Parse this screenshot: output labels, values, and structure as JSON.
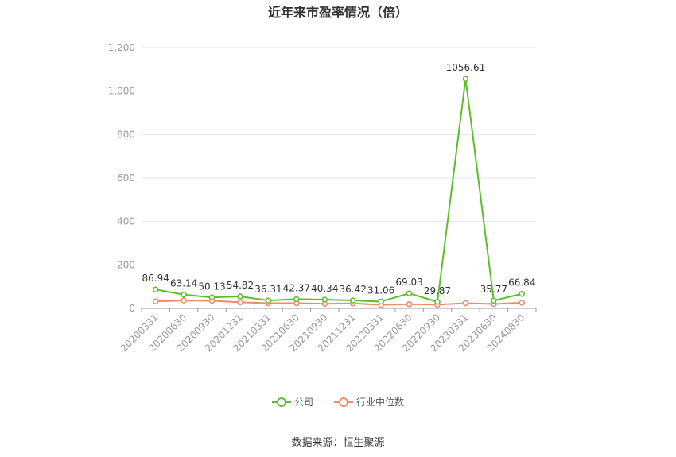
{
  "title": "近年来市盈率情况（倍）",
  "source_text": "数据来源：恒生聚源",
  "chart_data": {
    "type": "line",
    "categories": [
      "20200331",
      "20200630",
      "20200930",
      "20201231",
      "20210331",
      "20210630",
      "20210930",
      "20211231",
      "20220331",
      "20220630",
      "20220930",
      "20230331",
      "20230630",
      "20240830"
    ],
    "series": [
      {
        "name": "公司",
        "color": "#5cbf2a",
        "values": [
          86.94,
          63.14,
          50.13,
          54.82,
          36.31,
          42.37,
          40.34,
          36.42,
          31.06,
          69.03,
          29.87,
          1056.61,
          35.77,
          66.84
        ],
        "labels": [
          "86.94",
          "63.14",
          "50.13",
          "54.82",
          "36.31",
          "42.37",
          "40.34",
          "36.42",
          "31.06",
          "69.03",
          "29.87",
          "1056.61",
          "35.77",
          "66.84"
        ]
      },
      {
        "name": "行业中位数",
        "color": "#f08a68",
        "values": [
          32,
          36,
          35,
          28,
          24,
          24,
          21,
          23,
          16,
          19,
          17,
          24,
          20,
          26
        ]
      }
    ],
    "y_ticks": [
      "0",
      "200",
      "400",
      "600",
      "800",
      "1,000",
      "1,200"
    ],
    "ylim": [
      0,
      1200
    ],
    "grid": true,
    "legend_position": "bottom"
  }
}
